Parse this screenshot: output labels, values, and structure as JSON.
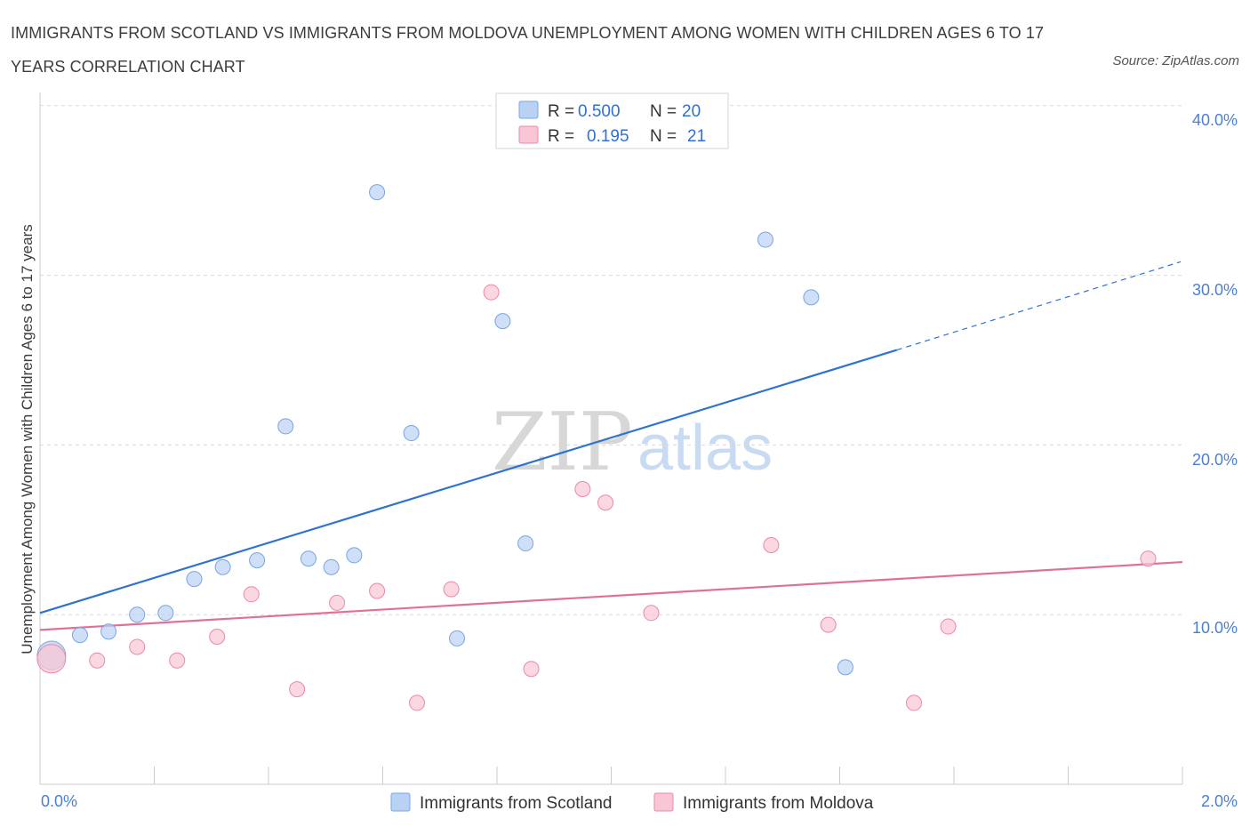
{
  "title": "IMMIGRANTS FROM SCOTLAND VS IMMIGRANTS FROM MOLDOVA UNEMPLOYMENT AMONG WOMEN WITH CHILDREN AGES 6 TO 17 YEARS CORRELATION CHART",
  "source": "Source: ZipAtlas.com",
  "watermark": {
    "zip": "ZIP",
    "atlas": "atlas"
  },
  "legend": {
    "r_label": "R =",
    "n_label": "N =",
    "rows": [
      {
        "r": "0.500",
        "n": "20"
      },
      {
        "r": "0.195",
        "n": "21"
      }
    ]
  },
  "colors": {
    "scotland_fill": "#b9d2f3",
    "scotland_stroke": "#7aa5e0",
    "scotland_line": "#2f73d0",
    "moldova_fill": "#f8c6d4",
    "moldova_stroke": "#e98aa7",
    "moldova_line": "#e0709a",
    "grid": "#d9d9d9",
    "axis": "#cccccc"
  },
  "chart_data": {
    "type": "scatter",
    "title": "IMMIGRANTS FROM SCOTLAND VS IMMIGRANTS FROM MOLDOVA UNEMPLOYMENT AMONG WOMEN WITH CHILDREN AGES 6 TO 17 YEARS CORRELATION CHART",
    "xlabel": "",
    "ylabel": "Unemployment Among Women with Children Ages 6 to 17 years",
    "xlim": [
      0,
      2.0
    ],
    "ylim": [
      0,
      40.0
    ],
    "x_tick_labels": [
      "0.0%",
      "2.0%"
    ],
    "y_ticks": [
      10,
      20,
      30,
      40
    ],
    "y_tick_labels": [
      "10.0%",
      "20.0%",
      "30.0%",
      "40.0%"
    ],
    "grid": true,
    "series": [
      {
        "name": "Immigrants from Scotland",
        "r": 0.5,
        "n": 20,
        "points": [
          {
            "x": 0.02,
            "y": 7.6,
            "big": true
          },
          {
            "x": 0.07,
            "y": 8.8
          },
          {
            "x": 0.12,
            "y": 9.0
          },
          {
            "x": 0.17,
            "y": 10.0
          },
          {
            "x": 0.22,
            "y": 10.1
          },
          {
            "x": 0.27,
            "y": 12.1
          },
          {
            "x": 0.32,
            "y": 12.8
          },
          {
            "x": 0.38,
            "y": 13.2
          },
          {
            "x": 0.43,
            "y": 21.1
          },
          {
            "x": 0.47,
            "y": 13.3
          },
          {
            "x": 0.51,
            "y": 12.8
          },
          {
            "x": 0.55,
            "y": 13.5
          },
          {
            "x": 0.59,
            "y": 34.9
          },
          {
            "x": 0.65,
            "y": 20.7
          },
          {
            "x": 0.73,
            "y": 8.6
          },
          {
            "x": 0.81,
            "y": 27.3
          },
          {
            "x": 0.85,
            "y": 14.2
          },
          {
            "x": 1.27,
            "y": 32.1
          },
          {
            "x": 1.35,
            "y": 28.7
          },
          {
            "x": 1.41,
            "y": 6.9
          }
        ],
        "trend": {
          "x0": 0.0,
          "y0": 10.1,
          "x1": 1.5,
          "y1": 25.6,
          "dash_to_x": 1.997,
          "dash_to_y": 30.8
        }
      },
      {
        "name": "Immigrants from Moldova",
        "r": 0.195,
        "n": 21,
        "points": [
          {
            "x": 0.02,
            "y": 7.4,
            "big": true
          },
          {
            "x": 0.1,
            "y": 7.3
          },
          {
            "x": 0.17,
            "y": 8.1
          },
          {
            "x": 0.24,
            "y": 7.3
          },
          {
            "x": 0.31,
            "y": 8.7
          },
          {
            "x": 0.37,
            "y": 11.2
          },
          {
            "x": 0.45,
            "y": 5.6
          },
          {
            "x": 0.52,
            "y": 10.7
          },
          {
            "x": 0.59,
            "y": 11.4
          },
          {
            "x": 0.66,
            "y": 4.8
          },
          {
            "x": 0.72,
            "y": 11.5
          },
          {
            "x": 0.79,
            "y": 29.0
          },
          {
            "x": 0.86,
            "y": 6.8
          },
          {
            "x": 0.95,
            "y": 17.4
          },
          {
            "x": 0.99,
            "y": 16.6
          },
          {
            "x": 1.07,
            "y": 10.1
          },
          {
            "x": 1.28,
            "y": 14.1
          },
          {
            "x": 1.38,
            "y": 9.4
          },
          {
            "x": 1.53,
            "y": 4.8
          },
          {
            "x": 1.59,
            "y": 9.3
          },
          {
            "x": 1.94,
            "y": 13.3
          }
        ],
        "trend": {
          "x0": 0.0,
          "y0": 9.1,
          "x1": 2.0,
          "y1": 13.1
        }
      }
    ]
  }
}
